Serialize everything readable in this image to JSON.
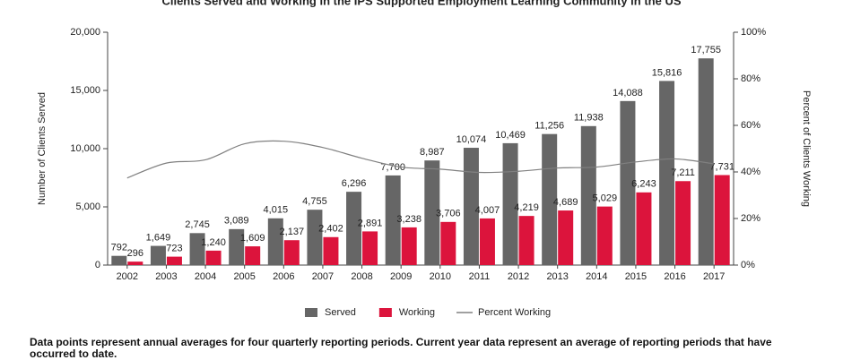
{
  "chart_data": {
    "type": "bar",
    "title": "Clients Served and Working in the IPS Supported Employment Learning Community in the US",
    "categories": [
      "2002",
      "2003",
      "2004",
      "2005",
      "2006",
      "2007",
      "2008",
      "2009",
      "2010",
      "2011",
      "2012",
      "2013",
      "2014",
      "2015",
      "2016",
      "2017"
    ],
    "series": [
      {
        "name": "Served",
        "color": "#666666",
        "values": [
          792,
          1649,
          2745,
          3089,
          4015,
          4755,
          6296,
          7700,
          8987,
          10074,
          10469,
          11256,
          11938,
          14088,
          15816,
          17755
        ],
        "value_labels": [
          "792",
          "1,649",
          "2,745",
          "3,089",
          "4,015",
          "4,755",
          "6,296",
          "7,700",
          "8,987",
          "10,074",
          "10,469",
          "11,256",
          "11,938",
          "14,088",
          "15,816",
          "17,755"
        ]
      },
      {
        "name": "Working",
        "color": "#dc143c",
        "values": [
          296,
          723,
          1240,
          1609,
          2137,
          2402,
          2891,
          3238,
          3706,
          4007,
          4219,
          4689,
          5029,
          6243,
          7211,
          7731
        ],
        "value_labels": [
          "296",
          "723",
          "1,240",
          "1,609",
          "2,137",
          "2,402",
          "2,891",
          "3,238",
          "3,706",
          "4,007",
          "4,219",
          "4,689",
          "5,029",
          "6,243",
          "7,211",
          "7,731"
        ]
      },
      {
        "name": "Percent Working",
        "color": "#808080",
        "axis": "y2",
        "type": "line",
        "values": [
          37.4,
          43.8,
          45.2,
          52.1,
          53.2,
          50.5,
          45.9,
          42.1,
          41.2,
          39.8,
          40.3,
          41.7,
          42.1,
          44.3,
          45.6,
          43.5
        ]
      }
    ],
    "ylabel": "Number of Clients Served",
    "y2label": "Percent of Clients Working",
    "ylim": [
      0,
      20000
    ],
    "yticks": [
      0,
      {
        "value": 5000,
        "label": "5,000"
      },
      {
        "value": 10000,
        "label": "10,000"
      },
      {
        "value": 15000,
        "label": "15,000"
      },
      {
        "value": 20000,
        "label": "20,000"
      }
    ],
    "y2lim": [
      0,
      100
    ],
    "y2ticks": [
      {
        "value": 0,
        "label": "0%"
      },
      {
        "value": 20,
        "label": "20%"
      },
      {
        "value": 40,
        "label": "40%"
      },
      {
        "value": 60,
        "label": "60%"
      },
      {
        "value": 80,
        "label": "80%"
      },
      {
        "value": 100,
        "label": "100%"
      }
    ],
    "grid": false,
    "legend": "bottom",
    "note": "Data points represent annual averages for four quarterly reporting periods. Current year data represent an average of reporting periods that have occurred to date."
  }
}
